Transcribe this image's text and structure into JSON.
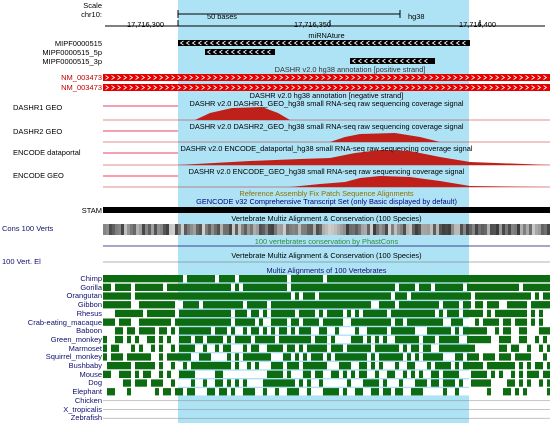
{
  "ruler": {
    "scale_label": "Scale",
    "chrom_label": "chr10:",
    "scale_text": "50 bases",
    "assembly": "hg38",
    "positions": [
      "17,716,300",
      "17,716,350",
      "17,716,400"
    ]
  },
  "tracks": {
    "mirnature": {
      "title": "miRNAture",
      "labels": [
        "MIPF0000515",
        "MIPF0000515_5p",
        "MIPF0000515_3p"
      ]
    },
    "dashr_annot_neg": {
      "title": "DASHR v2.0 hg38 annotation [negative strand]"
    },
    "dashr_annot_pos": {
      "title": "DASHR v2.0 hg38 annotation [positive strand]"
    },
    "refseq": {
      "labels": [
        "NM_003473",
        "NM_003473"
      ]
    },
    "dashr1": {
      "label": "DASHR1 GEO",
      "title": "DASHR v2.0 DASHR1_GEO_hg38 small RNA-seq raw sequencing coverage signal"
    },
    "dashr2": {
      "label": "DASHR2 GEO",
      "title": "DASHR v2.0 DASHR2_GEO_hg38 small RNA-seq raw sequencing coverage signal"
    },
    "encode_portal": {
      "label": "ENCODE dataportal",
      "title": "DASHR v2.0 ENCODE_dataportal_hg38 small RNA-seq raw sequencing coverage signal"
    },
    "encode_geo": {
      "label": "ENCODE GEO",
      "title": "DASHR v2.0 ENCODE_GEO_hg38 small RNA-seq raw sequencing coverage signal"
    },
    "fix_patch": {
      "title": "Reference Assembly Fix Patch Sequence Alignments"
    },
    "gencode": {
      "title": "GENCODE v32 Comprehensive Transcript Set (only Basic displayed by default)"
    },
    "stam": {
      "label": "STAM"
    },
    "multiz1": {
      "title": "Vertebrate Multiz Alignment & Conservation (100 Species)"
    },
    "cons100": {
      "label": "Cons 100 Verts"
    },
    "phastcons": {
      "title": "100 vertebrates conservation by PhastCons"
    },
    "vert100": {
      "label": "100 Vert. El"
    },
    "multiz2": {
      "title": "Vertebrate Multiz Alignment & Conservation (100 Species)"
    },
    "multiz_alignments": {
      "title": "Multiz Alignments of 100 Vertebrates"
    }
  },
  "species": [
    "Chimp",
    "Gorilla",
    "Orangutan",
    "Gibbon",
    "Rhesus",
    "Crab-eating_macaque",
    "Baboon",
    "Green_monkey",
    "Marmoset",
    "Squirrel_monkey",
    "Bushbaby",
    "Mouse",
    "Dog",
    "Elephant",
    "Chicken",
    "X_tropicalis",
    "Zebrafish"
  ],
  "colors": {
    "highlight": "#aee3f5",
    "refseq_red": "#e60000",
    "coverage_red": "#c0201a",
    "conservation_green": "#0d6b12",
    "multiz_blue": "#10106e",
    "gencode_blue": "#000080",
    "fix_patch": "#8b7300"
  }
}
